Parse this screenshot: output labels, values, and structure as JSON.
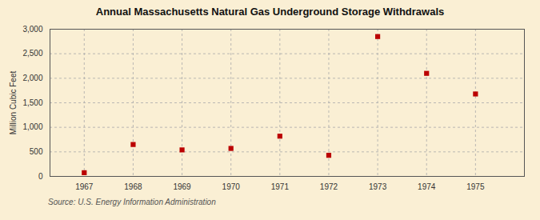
{
  "chart_data": {
    "type": "scatter",
    "title": "Annual Massachusetts Natural Gas Underground Storage Withdrawals",
    "ylabel": "Million Cubic Feet",
    "source": "Source: U.S. Energy Information Administration",
    "x": [
      1967,
      1968,
      1969,
      1970,
      1971,
      1972,
      1973,
      1974,
      1975
    ],
    "values": [
      75,
      650,
      540,
      570,
      820,
      430,
      2850,
      2100,
      1680
    ],
    "color": "#bb0000",
    "marker": "square",
    "xlim": [
      1966.3,
      1976.0
    ],
    "xticks": [
      1967,
      1968,
      1969,
      1970,
      1971,
      1972,
      1973,
      1974,
      1975
    ],
    "ylim": [
      0,
      3000
    ],
    "yticks": [
      0,
      500,
      {
        "value": 1000,
        "label": "1,000"
      },
      {
        "value": 1500,
        "label": "1,500"
      },
      {
        "value": 2000,
        "label": "2,000"
      },
      {
        "value": 2500,
        "label": "2,500"
      },
      {
        "value": 3000,
        "label": "3,000"
      }
    ],
    "grid": true
  }
}
